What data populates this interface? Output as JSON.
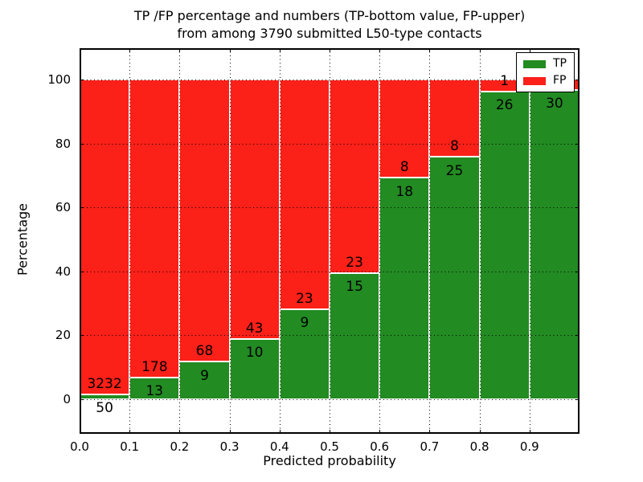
{
  "title": {
    "line1": "TP /FP percentage and numbers (TP-bottom value, FP-upper)",
    "line2": "from among 3790 submitted L50-type contacts"
  },
  "axes": {
    "ylabel": "Percentage",
    "xlabel": "Predicted probability",
    "x_tick_labels": [
      "0.0",
      "0.1",
      "0.2",
      "0.3",
      "0.4",
      "0.5",
      "0.6",
      "0.7",
      "0.8",
      "0.9"
    ],
    "y_tick_labels": [
      "0",
      "20",
      "40",
      "60",
      "80",
      "100"
    ]
  },
  "legend": {
    "items": [
      {
        "label": "TP",
        "color": "#228b22"
      },
      {
        "label": "FP",
        "color": "#fb2018"
      }
    ]
  },
  "chart_data": {
    "type": "bar",
    "stacked": true,
    "title": "TP /FP percentage and numbers (TP-bottom value, FP-upper) from among 3790 submitted L50-type contacts",
    "xlabel": "Predicted probability",
    "ylabel": "Percentage",
    "grid": true,
    "legend_position": "upper right",
    "xlim": [
      0.0,
      1.0
    ],
    "ylim": [
      -11,
      110
    ],
    "bin_edges": [
      0.0,
      0.1,
      0.2,
      0.3,
      0.4,
      0.5,
      0.6,
      0.7,
      0.8,
      0.9,
      1.0
    ],
    "categories": [
      "0.0-0.1",
      "0.1-0.2",
      "0.2-0.3",
      "0.3-0.4",
      "0.4-0.5",
      "0.5-0.6",
      "0.6-0.7",
      "0.7-0.8",
      "0.8-0.9",
      "0.9-1.0"
    ],
    "series": [
      {
        "name": "TP",
        "color": "#228b22",
        "counts": [
          50,
          13,
          9,
          10,
          9,
          15,
          18,
          25,
          26,
          30
        ],
        "pct": [
          1.52,
          6.81,
          11.69,
          18.87,
          28.13,
          39.47,
          69.23,
          75.76,
          96.3,
          96.77
        ]
      },
      {
        "name": "FP",
        "color": "#fb2018",
        "counts": [
          3232,
          178,
          68,
          43,
          23,
          23,
          8,
          8,
          1,
          1
        ],
        "pct": [
          98.48,
          93.19,
          88.31,
          81.13,
          71.87,
          60.53,
          30.77,
          24.24,
          3.7,
          3.23
        ]
      }
    ],
    "bar_labels": {
      "tp": [
        "50",
        "13",
        "9",
        "10",
        "9",
        "15",
        "18",
        "25",
        "26",
        "30"
      ],
      "fp": [
        "3232",
        "178",
        "68",
        "43",
        "23",
        "23",
        "8",
        "8",
        "1",
        "1"
      ]
    }
  }
}
